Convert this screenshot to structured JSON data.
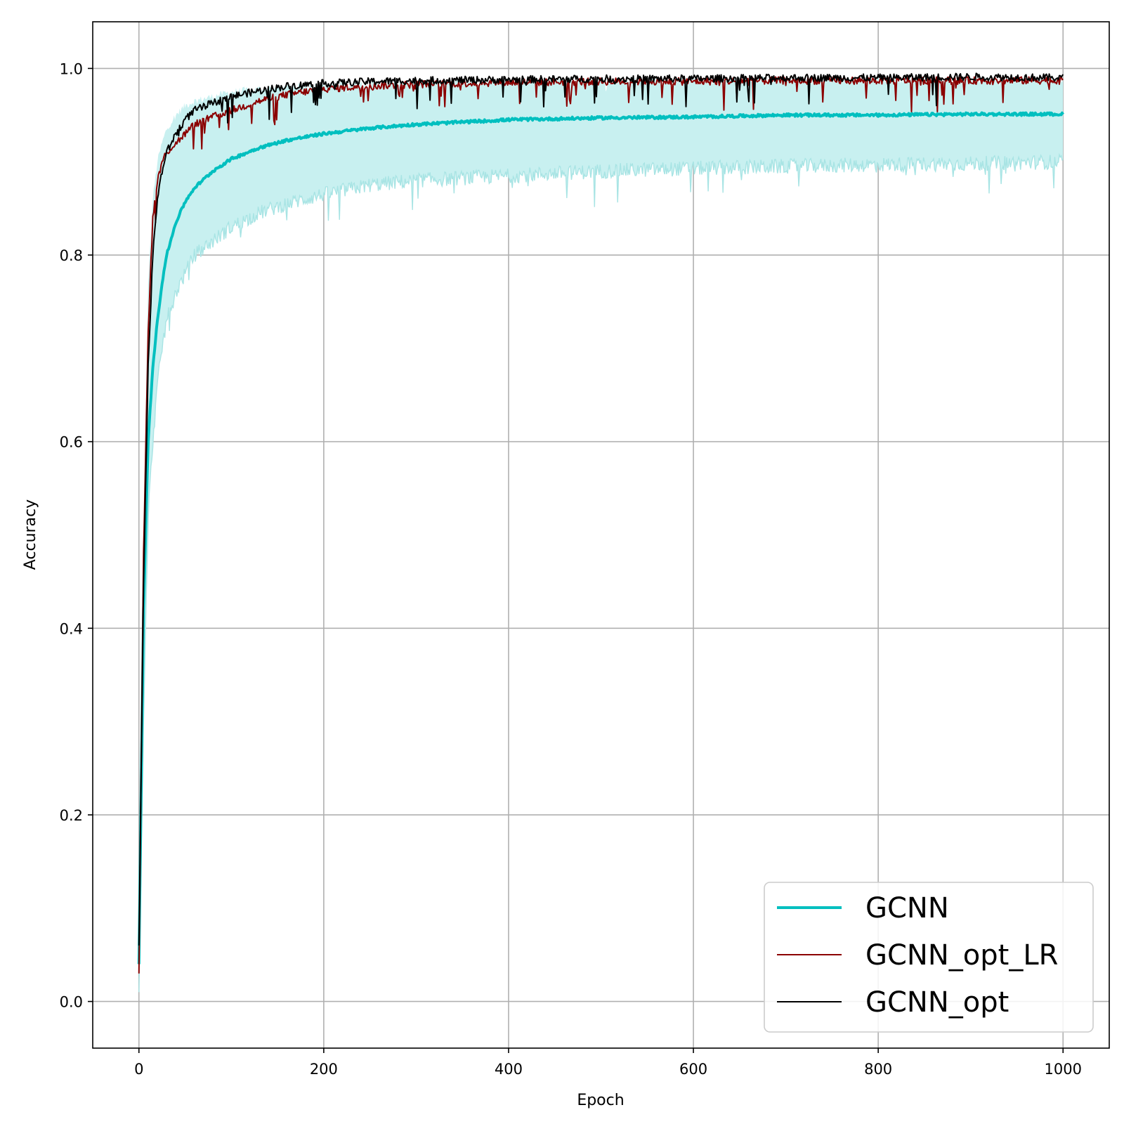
{
  "chart_data": {
    "type": "line",
    "title": "",
    "xlabel": "Epoch",
    "ylabel": "Accuracy",
    "xlim": [
      -50,
      1050
    ],
    "ylim": [
      -0.05,
      1.05
    ],
    "x_ticks": [
      0,
      200,
      400,
      600,
      800,
      1000
    ],
    "y_ticks": [
      0.0,
      0.2,
      0.4,
      0.6,
      0.8,
      1.0
    ],
    "x_tick_labels": [
      "0",
      "200",
      "400",
      "600",
      "800",
      "1000"
    ],
    "y_tick_labels": [
      "0.0",
      "0.2",
      "0.4",
      "0.6",
      "0.8",
      "1.0"
    ],
    "grid": true,
    "legend_position": "lower-right",
    "x_anchor_epochs": [
      0,
      5,
      10,
      15,
      20,
      25,
      30,
      40,
      50,
      60,
      80,
      100,
      130,
      160,
      200,
      250,
      300,
      400,
      500,
      600,
      700,
      800,
      900,
      1000
    ],
    "band": {
      "color": "#c8f0f0",
      "edge_color": "#a8e4e4",
      "upper": [
        0.06,
        0.52,
        0.77,
        0.86,
        0.9,
        0.92,
        0.935,
        0.95,
        0.96,
        0.965,
        0.97,
        0.975,
        0.978,
        0.98,
        0.982,
        0.983,
        0.985,
        0.986,
        0.987,
        0.987,
        0.988,
        0.988,
        0.988,
        0.988
      ],
      "lower": [
        0.01,
        0.3,
        0.52,
        0.6,
        0.66,
        0.7,
        0.73,
        0.76,
        0.78,
        0.8,
        0.815,
        0.83,
        0.845,
        0.855,
        0.865,
        0.875,
        0.88,
        0.885,
        0.89,
        0.893,
        0.895,
        0.897,
        0.898,
        0.9
      ]
    },
    "series": [
      {
        "name": "GCNN",
        "color": "#00bfbf",
        "width": 4,
        "values": [
          0.04,
          0.42,
          0.6,
          0.68,
          0.73,
          0.77,
          0.8,
          0.835,
          0.857,
          0.872,
          0.89,
          0.903,
          0.915,
          0.923,
          0.93,
          0.936,
          0.94,
          0.945,
          0.947,
          0.948,
          0.95,
          0.95,
          0.951,
          0.951
        ]
      },
      {
        "name": "GCNN_opt_LR",
        "color": "#8b0000",
        "width": 2,
        "values": [
          0.03,
          0.48,
          0.72,
          0.84,
          0.88,
          0.9,
          0.91,
          0.92,
          0.93,
          0.94,
          0.948,
          0.955,
          0.965,
          0.972,
          0.978,
          0.981,
          0.983,
          0.985,
          0.986,
          0.986,
          0.987,
          0.987,
          0.987,
          0.987
        ]
      },
      {
        "name": "GCNN_opt",
        "color": "#000000",
        "width": 2,
        "values": [
          0.06,
          0.45,
          0.68,
          0.8,
          0.86,
          0.89,
          0.91,
          0.93,
          0.945,
          0.955,
          0.963,
          0.97,
          0.976,
          0.981,
          0.984,
          0.986,
          0.987,
          0.988,
          0.989,
          0.989,
          0.99,
          0.99,
          0.991,
          0.99
        ]
      }
    ]
  }
}
